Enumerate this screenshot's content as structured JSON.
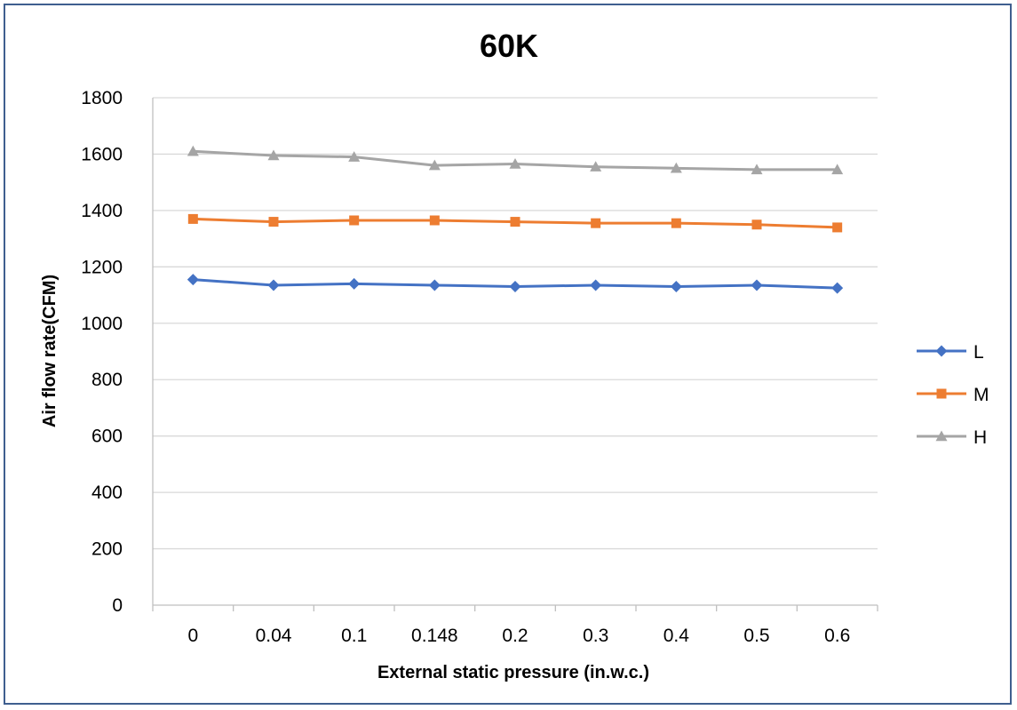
{
  "chart_data": {
    "type": "line",
    "title": "60K",
    "xlabel": "External static pressure (in.w.c.)",
    "ylabel": "Air flow rate(CFM)",
    "categories": [
      "0",
      "0.04",
      "0.1",
      "0.148",
      "0.2",
      "0.3",
      "0.4",
      "0.5",
      "0.6"
    ],
    "ylim": [
      0,
      1800
    ],
    "yticks": [
      0,
      200,
      400,
      600,
      800,
      1000,
      1200,
      1400,
      1600,
      1800
    ],
    "grid": true,
    "legend_position": "right",
    "series": [
      {
        "name": "L",
        "color": "#4472c4",
        "marker": "diamond",
        "values": [
          1155,
          1135,
          1140,
          1135,
          1130,
          1135,
          1130,
          1135,
          1125
        ]
      },
      {
        "name": "M",
        "color": "#ed7d31",
        "marker": "square",
        "values": [
          1370,
          1360,
          1365,
          1365,
          1360,
          1355,
          1355,
          1350,
          1340
        ]
      },
      {
        "name": "H",
        "color": "#a5a5a5",
        "marker": "triangle",
        "values": [
          1610,
          1595,
          1590,
          1560,
          1565,
          1555,
          1550,
          1545,
          1545
        ]
      }
    ]
  }
}
